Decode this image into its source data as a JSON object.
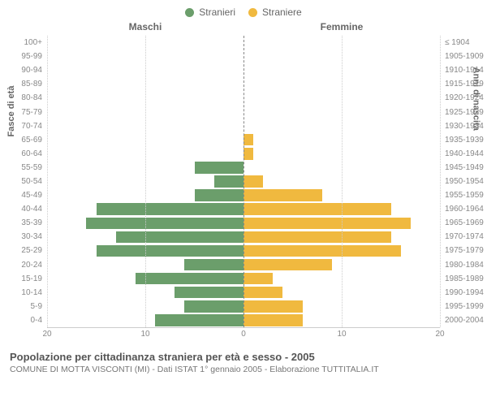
{
  "legend": {
    "series1": {
      "label": "Stranieri",
      "color": "#6b9e6b"
    },
    "series2": {
      "label": "Straniere",
      "color": "#f0b93f"
    }
  },
  "columns": {
    "left": "Maschi",
    "right": "Femmine"
  },
  "y_axis_left_title": "Fasce di età",
  "y_axis_right_title": "Anni di nascita",
  "chart": {
    "type": "population-pyramid",
    "x_max": 20,
    "x_ticks": [
      20,
      10,
      0,
      10,
      20
    ],
    "grid_color": "#cccccc",
    "centerline_color": "#888888",
    "label_fontsize": 10,
    "ylabel_color": "#888888",
    "bar_opacity": 1,
    "background_color": "#ffffff",
    "rows": [
      {
        "age": "100+",
        "birth": "≤ 1904",
        "m": 0,
        "f": 0
      },
      {
        "age": "95-99",
        "birth": "1905-1909",
        "m": 0,
        "f": 0
      },
      {
        "age": "90-94",
        "birth": "1910-1914",
        "m": 0,
        "f": 0
      },
      {
        "age": "85-89",
        "birth": "1915-1919",
        "m": 0,
        "f": 0
      },
      {
        "age": "80-84",
        "birth": "1920-1924",
        "m": 0,
        "f": 0
      },
      {
        "age": "75-79",
        "birth": "1925-1929",
        "m": 0,
        "f": 0
      },
      {
        "age": "70-74",
        "birth": "1930-1934",
        "m": 0,
        "f": 0
      },
      {
        "age": "65-69",
        "birth": "1935-1939",
        "m": 0,
        "f": 1
      },
      {
        "age": "60-64",
        "birth": "1940-1944",
        "m": 0,
        "f": 1
      },
      {
        "age": "55-59",
        "birth": "1945-1949",
        "m": 5,
        "f": 0
      },
      {
        "age": "50-54",
        "birth": "1950-1954",
        "m": 3,
        "f": 2
      },
      {
        "age": "45-49",
        "birth": "1955-1959",
        "m": 5,
        "f": 8
      },
      {
        "age": "40-44",
        "birth": "1960-1964",
        "m": 15,
        "f": 15
      },
      {
        "age": "35-39",
        "birth": "1965-1969",
        "m": 16,
        "f": 17
      },
      {
        "age": "30-34",
        "birth": "1970-1974",
        "m": 13,
        "f": 15
      },
      {
        "age": "25-29",
        "birth": "1975-1979",
        "m": 15,
        "f": 16
      },
      {
        "age": "20-24",
        "birth": "1980-1984",
        "m": 6,
        "f": 9
      },
      {
        "age": "15-19",
        "birth": "1985-1989",
        "m": 11,
        "f": 3
      },
      {
        "age": "10-14",
        "birth": "1990-1994",
        "m": 7,
        "f": 4
      },
      {
        "age": "5-9",
        "birth": "1995-1999",
        "m": 6,
        "f": 6
      },
      {
        "age": "0-4",
        "birth": "2000-2004",
        "m": 9,
        "f": 6
      }
    ]
  },
  "footer": {
    "title": "Popolazione per cittadinanza straniera per età e sesso - 2005",
    "subtitle": "COMUNE DI MOTTA VISCONTI (MI) - Dati ISTAT 1° gennaio 2005 - Elaborazione TUTTITALIA.IT"
  }
}
